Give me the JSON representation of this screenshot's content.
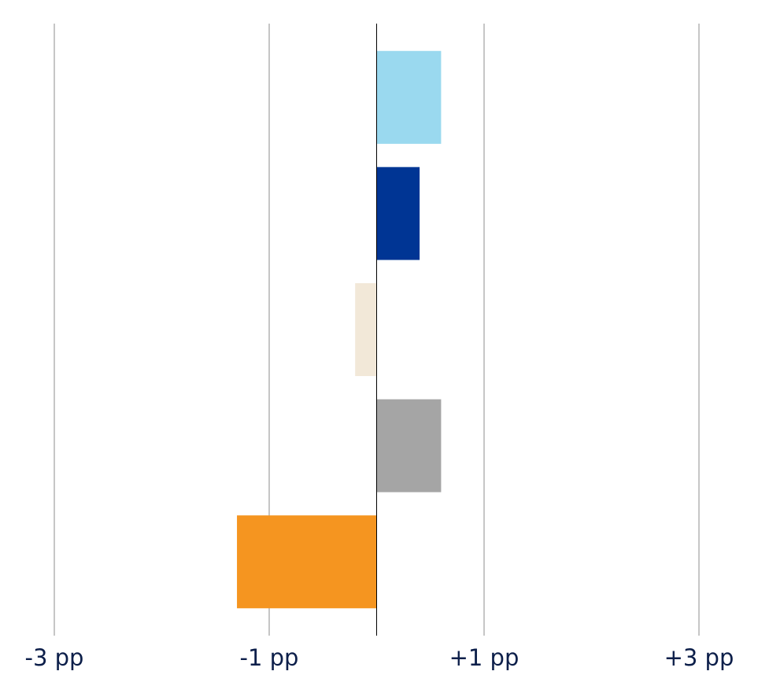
{
  "chart_data": {
    "type": "hbar",
    "categories": [
      null,
      null,
      null,
      null,
      null
    ],
    "values": [
      0.6,
      0.4,
      -0.2,
      0.6,
      -1.3
    ],
    "colors": [
      "#9ad9ef",
      "#003594",
      "#f2e8d8",
      "#a5a5a5",
      "#f59520"
    ],
    "xlim": [
      -3,
      3
    ],
    "xticks": [
      {
        "value": -3,
        "label": "-3 pp"
      },
      {
        "value": -1,
        "label": "-1 pp"
      },
      {
        "value": 1,
        "label": "+1 pp"
      },
      {
        "value": 3,
        "label": "+3 pp"
      }
    ],
    "grid": true
  }
}
